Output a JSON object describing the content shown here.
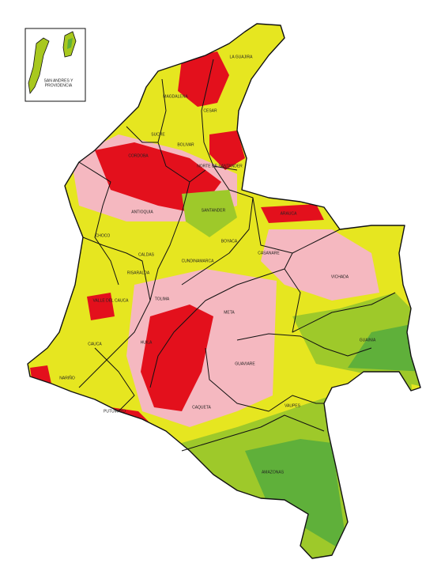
{
  "inset": {
    "lines": [
      "SAN ANDRES Y",
      "PROVIDENCIA"
    ]
  },
  "departments": [
    "LA GUAJIRA",
    "MAGDALENA",
    "CESAR",
    "SUCRE",
    "BOLIVAR",
    "CORDOBA",
    "NORTE DE SANTANDER",
    "ARAUCA",
    "ANTIOQUIA",
    "SANTANDER",
    "BOYACA",
    "CHOCO",
    "CALDAS",
    "CUNDINAMARCA",
    "CASANARE",
    "VICHADA",
    "RISARALDA",
    "TOLIMA",
    "VALLE DEL CAUCA",
    "META",
    "GUAINIA",
    "CAUCA",
    "HUILA",
    "NARIÑO",
    "GUAVIARE",
    "CAQUETA",
    "VAUPES",
    "PUTUMAYO",
    "AMAZONAS"
  ]
}
